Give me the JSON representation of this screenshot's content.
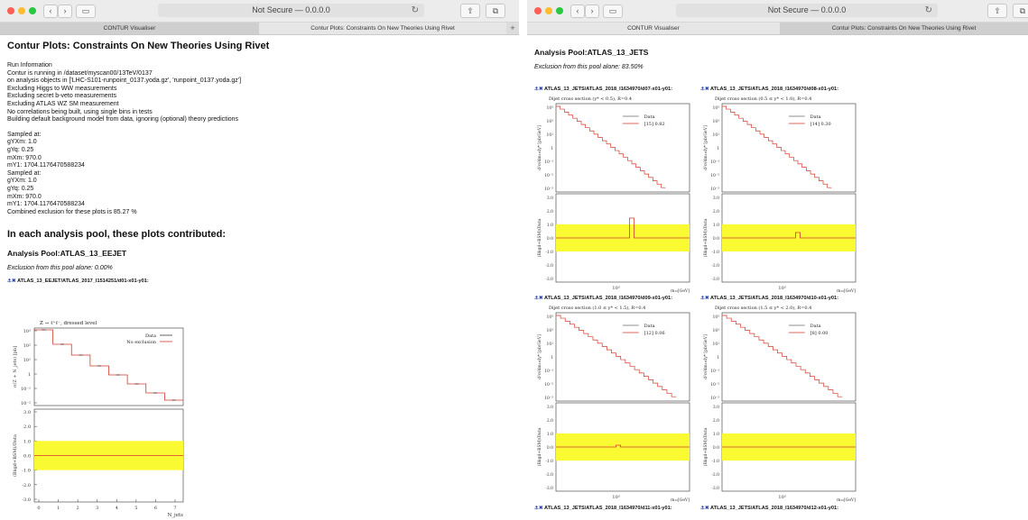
{
  "left_window": {
    "address": "Not Secure — 0.0.0.0",
    "tabs": [
      "CONTUR Visualiser",
      "Contur Plots: Constraints On New Theories Using Rivet"
    ],
    "page_title": "Contur Plots: Constraints On New Theories Using Rivet",
    "run_info": [
      "Run Information",
      "Contur is running in /dataset/myscan00/13TeV/0137",
      "on analysis objects in ['LHC-S101-runpoint_0137.yoda.gz', 'runpoint_0137.yoda.gz']",
      "Excluding Higgs to WW measurements",
      "Excluding secret b-veto measurements",
      "Excluding ATLAS WZ SM measurement",
      "No correlations being built, using single bins in tests",
      "Building default background model from data, ignoring (optional) theory predictions"
    ],
    "sampled": [
      "Sampled at:",
      "gYXm: 1.0",
      "gYq: 0.25",
      "mXm: 970.0",
      "mY1: 1704.1176470588234",
      "Sampled at:",
      "gYXm: 1.0",
      "gYq: 0.25",
      "mXm: 970.0",
      "mY1: 1704.1176470588234",
      "Combined exclusion for these plots is 85.27 %"
    ],
    "section_heading": "In each analysis pool, these plots contributed:",
    "pool_title": "Analysis Pool:ATLAS_13_EEJET",
    "pool_exclusion": "Exclusion from this pool alone: 0.00%",
    "plot_header": "ATLAS_13_EEJET/ATLAS_2017_I1514251/d01-x01-y01:",
    "plot": {
      "caption": "Z → ℓ⁺ℓ⁻, dressed level",
      "ylabel": "σ(Z + N_jets) [pb]",
      "ratio_ylabel": "(Bkgd+BSM)/Data",
      "xlabel": "N_jets",
      "legend": [
        "Data",
        "No exclusion"
      ],
      "xticks": [
        "0",
        "1",
        "2",
        "3",
        "4",
        "5",
        "6",
        "7"
      ],
      "yticks": [
        "10³",
        "10²",
        "10¹",
        "1",
        "10⁻¹",
        "10⁻²"
      ],
      "ratio_yticks": [
        "3.0",
        "2.0",
        "1.0",
        "0.0",
        "-1.0",
        "-2.0",
        "-3.0"
      ]
    }
  },
  "right_window": {
    "address": "Not Secure — 0.0.0.0",
    "tabs": [
      "CONTUR Visualiser",
      "Contur Plots: Constraints On New Theories Using Rivet"
    ],
    "pool_title": "Analysis Pool:ATLAS_13_JETS",
    "pool_exclusion": "Exclusion from this pool alone: 83.50%",
    "plots": [
      {
        "header": "ATLAS_13_JETS/ATLAS_2018_I1634970/d07-x01-y01:",
        "caption": "Dijet cross section (y* < 0.5), R=0.4",
        "legend_data": "Data",
        "legend_model": "[15] 0.82"
      },
      {
        "header": "ATLAS_13_JETS/ATLAS_2018_I1634970/d08-x01-y01:",
        "caption": "Dijet cross section (0.5 ≤ y* < 1.0), R=0.4",
        "legend_data": "Data",
        "legend_model": "[14] 0.30"
      },
      {
        "header": "ATLAS_13_JETS/ATLAS_2018_I1634970/d09-x01-y01:",
        "caption": "Dijet cross section (1.0 ≤ y* < 1.5), R=0.4",
        "legend_data": "Data",
        "legend_model": "[12] 0.06"
      },
      {
        "header": "ATLAS_13_JETS/ATLAS_2018_I1634970/d10-x01-y01:",
        "caption": "Dijet cross section (1.5 ≤ y* < 2.0), R=0.4",
        "legend_data": "Data",
        "legend_model": "[8] 0.00"
      }
    ],
    "bottom_headers": [
      "ATLAS_13_JETS/ATLAS_2018_I1634970/d11-x01-y01:",
      "ATLAS_13_JETS/ATLAS_2018_I1634970/d12-x01-y01:"
    ],
    "jets_xlabel": "m₁₂[GeV]",
    "jets_xtick": "10³",
    "jets_ylabel": "d²σ/dm₁₂dy* [pb/GeV]",
    "ratio_ylabel": "(Bkgd+BSM)/Data"
  },
  "colors": {
    "model_line": "#d33a2c",
    "band": "#fafa32",
    "data": "#222222"
  }
}
